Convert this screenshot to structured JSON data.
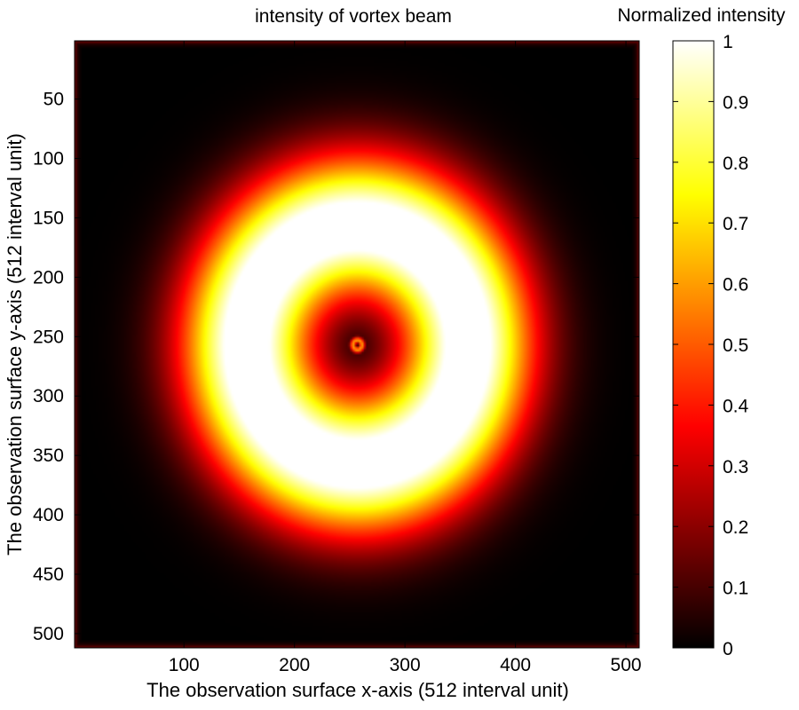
{
  "chart_data": {
    "type": "heatmap",
    "title": "intensity of vortex beam",
    "xlabel": "The observation surface x-axis (512 interval unit)",
    "ylabel": "The observation surface y-axis (512 interval unit)",
    "xlim": [
      1,
      512
    ],
    "ylim": [
      1,
      512
    ],
    "y_axis_direction": "reversed (1 at top, 512 at bottom)",
    "xticks": [
      100,
      200,
      300,
      400,
      500
    ],
    "yticks": [
      50,
      100,
      150,
      200,
      250,
      300,
      350,
      400,
      450,
      500
    ],
    "colormap": "hot",
    "colormap_stops": [
      "#000000",
      "#ff0000",
      "#ffff00",
      "#ffffff"
    ],
    "colorbar": {
      "label": "Normalized intensity",
      "range": [
        0,
        1
      ],
      "ticks": [
        0,
        0.1,
        0.2,
        0.3,
        0.4,
        0.5,
        0.6,
        0.7,
        0.8,
        0.9,
        1
      ]
    },
    "features": {
      "center": [
        257,
        257
      ],
      "outer_ring": {
        "peak_radius": 100,
        "peak_intensity": 1.0,
        "width": 60
      },
      "inner_ring": {
        "peak_radius": 4,
        "peak_intensity": 0.6
      },
      "central_intensity": 0
    },
    "grid": false
  }
}
